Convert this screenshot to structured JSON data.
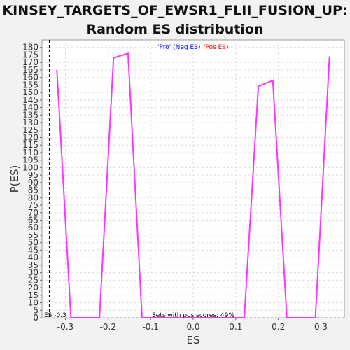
{
  "chart_data": {
    "type": "line",
    "title": "KINSEY_TARGETS_OF_EWSR1_FLII_FUSION_UP: Random ES distribution",
    "xlabel": "ES",
    "ylabel": "P(ES)",
    "xlim": [
      -0.355,
      0.355
    ],
    "ylim": [
      0,
      185
    ],
    "x_ticks": [
      -0.3,
      -0.2,
      -0.1,
      0.0,
      0.1,
      0.2,
      0.3
    ],
    "x_tick_labels": [
      "-0.3",
      "-0.2",
      "-0.1",
      "0.0",
      "0.1",
      "0.2",
      "0.3"
    ],
    "y_ticks": [
      0,
      5,
      10,
      15,
      20,
      25,
      30,
      35,
      40,
      45,
      50,
      55,
      60,
      65,
      70,
      75,
      80,
      85,
      90,
      95,
      100,
      105,
      110,
      115,
      120,
      125,
      130,
      135,
      140,
      145,
      150,
      155,
      160,
      165,
      170,
      175,
      180
    ],
    "y_tick_labels": [
      "0",
      "5",
      "10",
      "15",
      "20",
      "25",
      "30",
      "35",
      "40",
      "45",
      "50",
      "55",
      "60",
      "65",
      "70",
      "75",
      "80",
      "85",
      "90",
      "95",
      "100",
      "105",
      "110",
      "115",
      "120",
      "125",
      "130",
      "135",
      "140",
      "145",
      "150",
      "155",
      "160",
      "165",
      "170",
      "175",
      "180"
    ],
    "grid": true,
    "legend": [
      {
        "label": "'Pro' (Neg ES)",
        "color": "#0000ff"
      },
      {
        "label": "'Pos ES)",
        "color": "#ff0000"
      }
    ],
    "series": [
      {
        "color": "#ff33ff",
        "x": [
          -0.32,
          -0.287,
          -0.22,
          -0.187,
          -0.153,
          -0.12,
          0.12,
          0.153,
          0.187,
          0.22,
          0.287,
          0.32
        ],
        "y": [
          165,
          0,
          0,
          173,
          176,
          0,
          0,
          154,
          158,
          0,
          0,
          174
        ]
      }
    ],
    "reference_line": {
      "x": -0.337,
      "label": "ES -0.3",
      "style": "dashed",
      "color": "#000000"
    },
    "annotation": "Sets with pos scores: 49%"
  }
}
